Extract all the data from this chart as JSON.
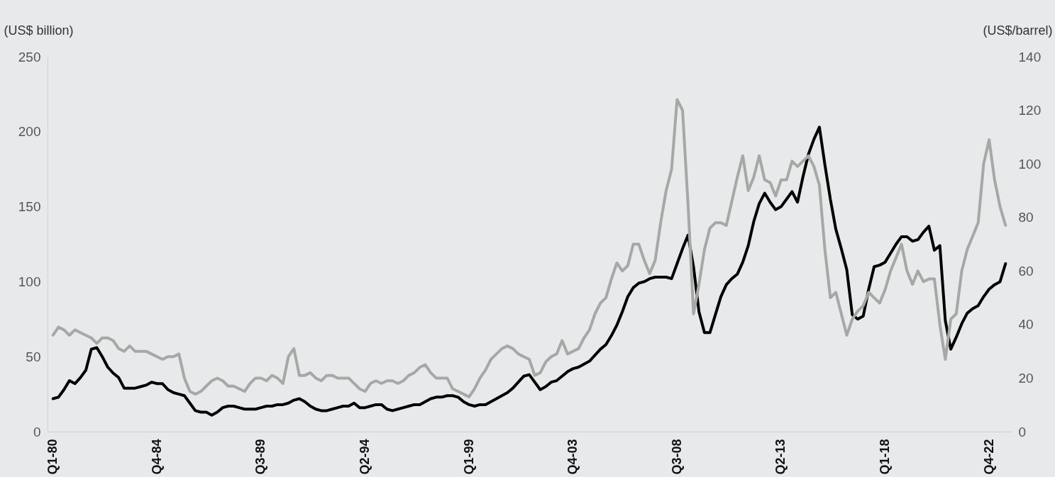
{
  "chart_data": {
    "type": "line",
    "ylabel": "(US$ billion)",
    "y2label": "(US$/barrel)",
    "categories": [
      "Q1-80",
      null,
      null,
      null,
      null,
      null,
      null,
      null,
      null,
      null,
      null,
      null,
      null,
      null,
      null,
      null,
      null,
      null,
      null,
      "Q4-84",
      null,
      null,
      null,
      null,
      null,
      null,
      null,
      null,
      null,
      null,
      null,
      null,
      null,
      null,
      null,
      null,
      null,
      null,
      "Q3-89",
      null,
      null,
      null,
      null,
      null,
      null,
      null,
      null,
      null,
      null,
      null,
      null,
      null,
      null,
      null,
      null,
      null,
      null,
      "Q2-94",
      null,
      null,
      null,
      null,
      null,
      null,
      null,
      null,
      null,
      null,
      null,
      null,
      null,
      null,
      null,
      null,
      null,
      null,
      "Q1-99",
      null,
      null,
      null,
      null,
      null,
      null,
      null,
      null,
      null,
      null,
      null,
      null,
      null,
      null,
      null,
      null,
      null,
      null,
      "Q4-03",
      null,
      null,
      null,
      null,
      null,
      null,
      null,
      null,
      null,
      null,
      null,
      null,
      null,
      null,
      null,
      null,
      null,
      null,
      "Q3-08",
      null,
      null,
      null,
      null,
      null,
      null,
      null,
      null,
      null,
      null,
      null,
      null,
      null,
      null,
      null,
      null,
      null,
      null,
      "Q2-13",
      null,
      null,
      null,
      null,
      null,
      null,
      null,
      null,
      null,
      null,
      null,
      null,
      null,
      null,
      null,
      null,
      null,
      null,
      "Q1-18",
      null,
      null,
      null,
      null,
      null,
      null,
      null,
      null,
      null,
      null,
      null,
      null,
      null,
      null,
      null,
      null,
      null,
      null,
      "Q4-22",
      null,
      null,
      null
    ],
    "series": [
      {
        "color": "#000000",
        "values": [
          22,
          23,
          28,
          34,
          32,
          36,
          41,
          55,
          56,
          50,
          43,
          39,
          36,
          29,
          29,
          29,
          30,
          31,
          33,
          32,
          32,
          28,
          26,
          25,
          24,
          19,
          14,
          13,
          13,
          11,
          13,
          16,
          17,
          17,
          16,
          15,
          15,
          15,
          16,
          17,
          17,
          18,
          18,
          19,
          21,
          22,
          20,
          17,
          15,
          14,
          14,
          15,
          16,
          17,
          17,
          19,
          16,
          16,
          17,
          18,
          18,
          15,
          14,
          15,
          16,
          17,
          18,
          18,
          20,
          22,
          23,
          23,
          24,
          24,
          23,
          20,
          18,
          17,
          18,
          18,
          20,
          22,
          24,
          26,
          29,
          33,
          37,
          38,
          33,
          28,
          30,
          33,
          34,
          37,
          40,
          42,
          43,
          45,
          47,
          51,
          55,
          58,
          64,
          71,
          80,
          90,
          96,
          99,
          100,
          102,
          103,
          103,
          103,
          102,
          112,
          122,
          131,
          110,
          80,
          66,
          66,
          78,
          90,
          98,
          102,
          105,
          113,
          124,
          140,
          152,
          159,
          153,
          148,
          150,
          155,
          160,
          153,
          170,
          185,
          195,
          203,
          178,
          155,
          135,
          122,
          108,
          78,
          75,
          77,
          95,
          110,
          111,
          113,
          119,
          125,
          130,
          130,
          127,
          128,
          133,
          137,
          121,
          124,
          74,
          55,
          63,
          72,
          79,
          82,
          84,
          90,
          95,
          98,
          100,
          112
        ]
      },
      {
        "color": "#a7a7a5",
        "axis": "y2",
        "values": [
          36,
          39,
          38,
          36,
          38,
          37,
          36,
          35,
          33,
          35,
          35,
          34,
          31,
          30,
          32,
          30,
          30,
          30,
          29,
          28,
          27,
          28,
          28,
          29,
          20,
          15,
          14,
          15,
          17,
          19,
          20,
          19,
          17,
          17,
          16,
          15,
          18,
          20,
          20,
          19,
          21,
          20,
          18,
          28,
          31,
          21,
          21,
          22,
          20,
          19,
          21,
          21,
          20,
          20,
          20,
          18,
          16,
          15,
          18,
          19,
          18,
          19,
          19,
          18,
          19,
          21,
          22,
          24,
          25,
          22,
          20,
          20,
          20,
          16,
          15,
          14,
          13,
          16,
          20,
          23,
          27,
          29,
          31,
          32,
          31,
          29,
          28,
          27,
          21,
          22,
          26,
          28,
          29,
          34,
          29,
          30,
          31,
          35,
          38,
          44,
          48,
          50,
          57,
          63,
          60,
          62,
          70,
          70,
          64,
          59,
          64,
          78,
          90,
          98,
          124,
          120,
          85,
          44,
          55,
          68,
          76,
          78,
          78,
          77,
          86,
          95,
          103,
          90,
          95,
          103,
          94,
          93,
          88,
          94,
          94,
          101,
          99,
          101,
          103,
          99,
          92,
          68,
          50,
          52,
          44,
          36,
          42,
          45,
          47,
          52,
          50,
          48,
          53,
          60,
          65,
          70,
          60,
          55,
          60,
          56,
          57,
          57,
          40,
          27,
          42,
          44,
          60,
          68,
          73,
          78,
          100,
          109,
          94,
          84,
          77
        ]
      }
    ],
    "ylim": [
      0,
      250
    ],
    "yticks": [
      0,
      50,
      100,
      150,
      200,
      250
    ],
    "y2lim": [
      0,
      140
    ],
    "y2ticks": [
      0,
      20,
      40,
      60,
      80,
      100,
      120,
      140
    ],
    "marker": "none",
    "line_style": "solid"
  }
}
